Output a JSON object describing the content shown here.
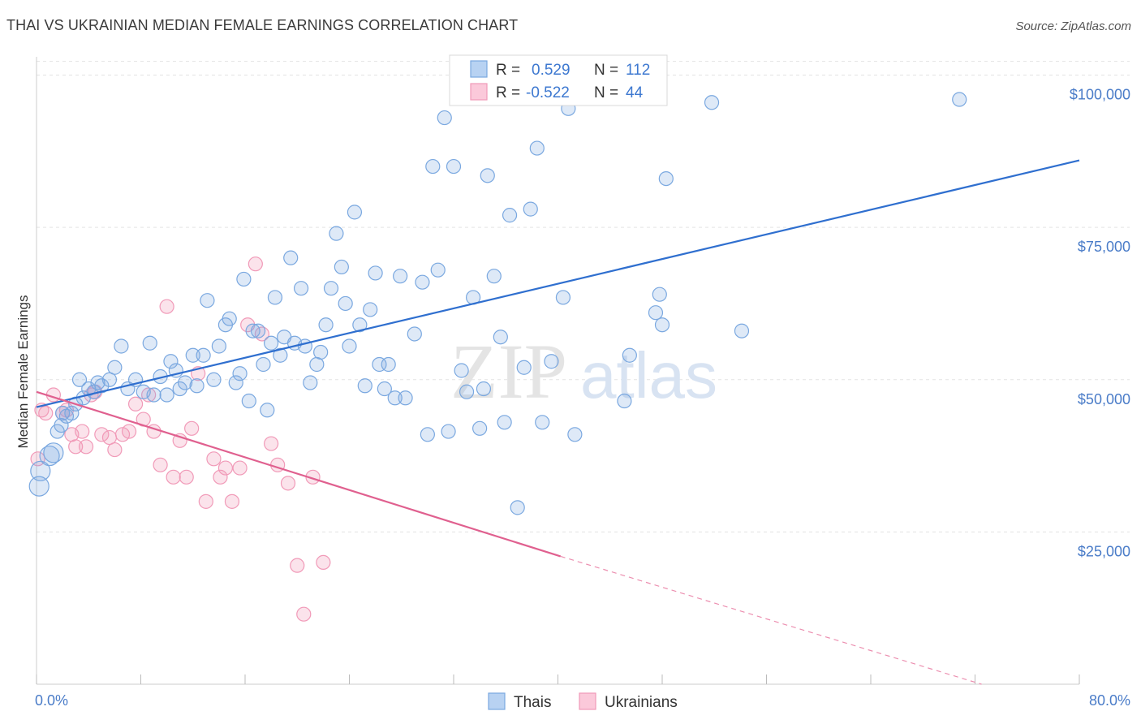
{
  "header": {
    "title": "THAI VS UKRAINIAN MEDIAN FEMALE EARNINGS CORRELATION CHART",
    "source": "Source: ZipAtlas.com"
  },
  "watermark": {
    "zip": "ZIP",
    "atlas": "atlas"
  },
  "chart_data": {
    "type": "scatter",
    "ylabel": "Median Female Earnings",
    "xlim": [
      0,
      80
    ],
    "ylim": [
      0,
      103000
    ],
    "x_tick_labels": [
      "0.0%",
      "80.0%"
    ],
    "y_ticks": [
      {
        "value": 25000,
        "label": "$25,000"
      },
      {
        "value": 50000,
        "label": "$50,000"
      },
      {
        "value": 75000,
        "label": "$75,000"
      },
      {
        "value": 100000,
        "label": "$100,000"
      }
    ],
    "grid": "horizontal-dashed",
    "legend": {
      "position": "top-center",
      "rows": [
        {
          "r_label": "R =",
          "r_value": "0.529",
          "n_label": "N =",
          "n_value": "112"
        },
        {
          "r_label": "R =",
          "r_value": "-0.522",
          "n_label": "N =",
          "n_value": "44"
        }
      ]
    },
    "series": [
      {
        "name": "Thais",
        "color": "#7aa8e0",
        "trend": {
          "x": [
            0,
            80
          ],
          "y": [
            45500,
            86000
          ]
        },
        "points": [
          [
            0.2,
            32500
          ],
          [
            0.3,
            35000
          ],
          [
            1.0,
            37500
          ],
          [
            1.3,
            38000
          ],
          [
            1.6,
            41500
          ],
          [
            1.9,
            42500
          ],
          [
            2.0,
            44500
          ],
          [
            2.3,
            44000
          ],
          [
            2.7,
            44500
          ],
          [
            3.0,
            46000
          ],
          [
            3.3,
            50000
          ],
          [
            3.6,
            47000
          ],
          [
            4.0,
            48500
          ],
          [
            4.4,
            48000
          ],
          [
            4.7,
            49500
          ],
          [
            5.0,
            49000
          ],
          [
            5.6,
            50000
          ],
          [
            6.0,
            52000
          ],
          [
            6.5,
            55500
          ],
          [
            7.0,
            48500
          ],
          [
            7.6,
            50000
          ],
          [
            8.2,
            48000
          ],
          [
            8.7,
            56000
          ],
          [
            9.0,
            47500
          ],
          [
            9.5,
            50500
          ],
          [
            10.0,
            47500
          ],
          [
            10.3,
            53000
          ],
          [
            10.7,
            51500
          ],
          [
            11.0,
            48500
          ],
          [
            11.4,
            49500
          ],
          [
            12.0,
            54000
          ],
          [
            12.3,
            49000
          ],
          [
            12.8,
            54000
          ],
          [
            13.1,
            63000
          ],
          [
            13.6,
            50000
          ],
          [
            14.0,
            55500
          ],
          [
            14.5,
            59000
          ],
          [
            14.8,
            60000
          ],
          [
            15.3,
            49500
          ],
          [
            15.6,
            51000
          ],
          [
            15.9,
            66500
          ],
          [
            16.3,
            46500
          ],
          [
            16.6,
            58000
          ],
          [
            17.0,
            58000
          ],
          [
            17.4,
            52500
          ],
          [
            17.7,
            45000
          ],
          [
            18.0,
            56000
          ],
          [
            18.3,
            63500
          ],
          [
            18.7,
            54000
          ],
          [
            19.0,
            57000
          ],
          [
            19.5,
            70000
          ],
          [
            19.8,
            56000
          ],
          [
            20.3,
            65000
          ],
          [
            20.6,
            55500
          ],
          [
            21.0,
            49500
          ],
          [
            21.5,
            52500
          ],
          [
            21.8,
            54500
          ],
          [
            22.2,
            59000
          ],
          [
            22.6,
            65000
          ],
          [
            23.0,
            74000
          ],
          [
            23.4,
            68500
          ],
          [
            23.7,
            62500
          ],
          [
            24.0,
            55500
          ],
          [
            24.4,
            77500
          ],
          [
            24.8,
            59000
          ],
          [
            25.2,
            49000
          ],
          [
            25.6,
            61500
          ],
          [
            26.0,
            67500
          ],
          [
            26.3,
            52500
          ],
          [
            26.7,
            48500
          ],
          [
            27.0,
            52500
          ],
          [
            27.5,
            47000
          ],
          [
            27.9,
            67000
          ],
          [
            28.3,
            47000
          ],
          [
            29.0,
            57500
          ],
          [
            29.6,
            66000
          ],
          [
            30.0,
            41000
          ],
          [
            30.4,
            85000
          ],
          [
            30.8,
            68000
          ],
          [
            31.3,
            93000
          ],
          [
            31.6,
            41500
          ],
          [
            32.0,
            85000
          ],
          [
            32.6,
            51500
          ],
          [
            33.0,
            48000
          ],
          [
            33.5,
            63500
          ],
          [
            34.0,
            42000
          ],
          [
            34.3,
            48500
          ],
          [
            34.6,
            83500
          ],
          [
            35.1,
            67000
          ],
          [
            35.6,
            57000
          ],
          [
            35.9,
            43000
          ],
          [
            36.3,
            77000
          ],
          [
            36.9,
            29000
          ],
          [
            37.4,
            52000
          ],
          [
            37.9,
            78000
          ],
          [
            38.4,
            88000
          ],
          [
            38.8,
            43000
          ],
          [
            39.5,
            53000
          ],
          [
            40.4,
            63500
          ],
          [
            40.8,
            94500
          ],
          [
            41.3,
            41000
          ],
          [
            45.1,
            46500
          ],
          [
            45.5,
            54000
          ],
          [
            47.5,
            61000
          ],
          [
            47.8,
            64000
          ],
          [
            48.0,
            59000
          ],
          [
            48.3,
            83000
          ],
          [
            51.8,
            95500
          ],
          [
            54.1,
            58000
          ],
          [
            70.8,
            96000
          ]
        ]
      },
      {
        "name": "Ukrainians",
        "color": "#f19ab8",
        "trend": {
          "x": [
            0,
            40.2
          ],
          "y": [
            48000,
            21000
          ]
        },
        "trend_extension": {
          "x": [
            40.2,
            72.5
          ],
          "y": [
            21000,
            0
          ]
        },
        "points": [
          [
            0.1,
            37000
          ],
          [
            0.4,
            45000
          ],
          [
            0.7,
            44500
          ],
          [
            1.3,
            47500
          ],
          [
            2.0,
            44500
          ],
          [
            2.3,
            45000
          ],
          [
            2.7,
            41000
          ],
          [
            3.0,
            39000
          ],
          [
            3.5,
            41500
          ],
          [
            3.8,
            39000
          ],
          [
            4.2,
            47500
          ],
          [
            4.5,
            48000
          ],
          [
            5.0,
            41000
          ],
          [
            5.6,
            40500
          ],
          [
            6.0,
            38500
          ],
          [
            6.6,
            41000
          ],
          [
            7.1,
            41500
          ],
          [
            7.6,
            46000
          ],
          [
            8.2,
            43500
          ],
          [
            8.6,
            47500
          ],
          [
            9.0,
            41500
          ],
          [
            9.5,
            36000
          ],
          [
            10.0,
            62000
          ],
          [
            10.5,
            34000
          ],
          [
            11.0,
            40000
          ],
          [
            11.5,
            34000
          ],
          [
            11.9,
            42000
          ],
          [
            12.4,
            51000
          ],
          [
            13.0,
            30000
          ],
          [
            13.6,
            37000
          ],
          [
            14.1,
            34000
          ],
          [
            14.5,
            35500
          ],
          [
            15.0,
            30000
          ],
          [
            15.6,
            35500
          ],
          [
            16.2,
            59000
          ],
          [
            16.8,
            69000
          ],
          [
            17.3,
            57500
          ],
          [
            18.0,
            39500
          ],
          [
            18.5,
            36000
          ],
          [
            19.3,
            33000
          ],
          [
            20.0,
            19500
          ],
          [
            20.5,
            11500
          ],
          [
            21.2,
            34000
          ],
          [
            22.0,
            20000
          ]
        ]
      }
    ]
  },
  "bottom_legend": {
    "items": [
      {
        "label": "Thais",
        "color": "#7aa8e0"
      },
      {
        "label": "Ukrainians",
        "color": "#f19ab8"
      }
    ]
  }
}
